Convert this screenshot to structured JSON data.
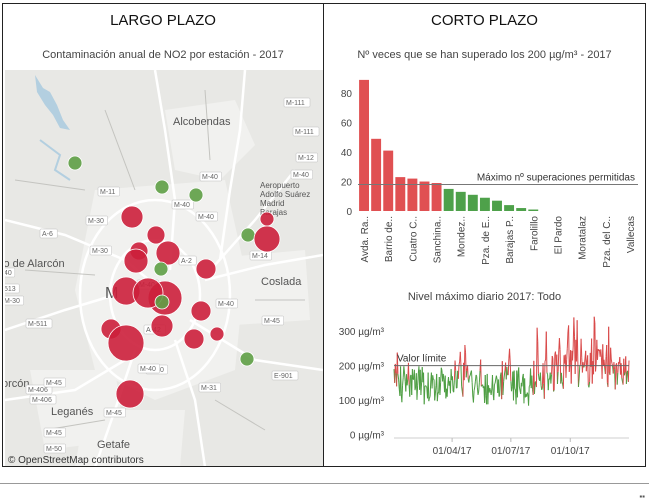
{
  "left_panel": {
    "title": "LARGO PLAZO",
    "subtitle": "Contaminación anual de NO2 por estación - 2017",
    "map": {
      "attribution": "© OpenStreetMap contributors",
      "places": [
        {
          "name": "Alcobendas"
        },
        {
          "name": "Aeropuerto Adolfo Suárez Madrid Barajas"
        },
        {
          "name": "lo de Alarcón"
        },
        {
          "name": "Coslada"
        },
        {
          "name": "Leganés"
        },
        {
          "name": "Getafe"
        },
        {
          "name": "orcón"
        },
        {
          "name": "M"
        }
      ],
      "roads": [
        "M-111",
        "M-111",
        "M-12",
        "M-40",
        "M-40",
        "M-40",
        "M-11",
        "M-40",
        "M-30",
        "A-6",
        "M-30",
        "M-14",
        "A-2",
        "M-40",
        "M-45",
        "M-40",
        "M-511",
        "M-406",
        "M-45",
        "M-406",
        "M-45",
        "M-31",
        "E-901",
        "M-45",
        "M-50",
        "M-40",
        "513",
        "M-30",
        "M-40",
        "A-42",
        "40"
      ],
      "colors": {
        "high": "#cc1f3b",
        "low": "#5e9e45"
      }
    }
  },
  "right_panel": {
    "title": "CORTO PLAZO",
    "chart_data": [
      {
        "type": "bar",
        "title": "Nº veces que se han superado los 200 µg/m³ - 2017",
        "categories": [
          "Avda. Ra..",
          "",
          "Barrio de..",
          "",
          "Cuatro C..",
          "",
          "Sanchina..",
          "",
          "Mondez..",
          "",
          "Pza. de E..",
          "",
          "Barajas P..",
          "",
          "Farolillo",
          "",
          "El Pardo",
          "",
          "Moratalaz",
          "",
          "Pza. del C..",
          "",
          "Vallecas"
        ],
        "values": [
          89,
          49,
          41,
          23,
          22,
          20,
          19,
          15,
          13,
          11,
          9,
          7,
          4,
          2,
          1,
          0,
          0,
          0,
          0,
          0,
          0,
          0,
          0
        ],
        "colors": [
          "#e05052",
          "#e05052",
          "#e05052",
          "#e05052",
          "#e05052",
          "#e05052",
          "#e05052",
          "#4ea14a",
          "#4ea14a",
          "#4ea14a",
          "#4ea14a",
          "#4ea14a",
          "#4ea14a",
          "#4ea14a",
          "#4ea14a",
          "#4ea14a",
          "#4ea14a",
          "#4ea14a",
          "#4ea14a",
          "#4ea14a",
          "#4ea14a",
          "#4ea14a",
          "#4ea14a"
        ],
        "yticks": [
          "0",
          "20",
          "40",
          "60",
          "80"
        ],
        "ylim": [
          0,
          93
        ],
        "reference_line": {
          "value": 18,
          "label": "Máximo nº superaciones permitidas"
        }
      },
      {
        "type": "line",
        "title": "Nivel máximo diario 2017: Todo",
        "x_start": "01/01/17",
        "x_end": "31/12/17",
        "yticks": [
          "0 µg/m³",
          "100 µg/m³",
          "200 µg/m³",
          "300 µg/m³"
        ],
        "xticks": [
          "01/04/17",
          "01/07/17",
          "01/10/17"
        ],
        "ylim": [
          -10,
          350
        ],
        "threshold": {
          "value": 200,
          "label": "Valor límite"
        },
        "colors": {
          "above": "#d94a4a",
          "below": "#4e9e43"
        },
        "values": [
          190,
          150,
          205,
          178,
          140,
          238,
          176,
          160,
          132,
          112,
          198,
          118,
          94,
          142,
          165,
          198,
          180,
          155,
          125,
          175,
          143,
          160,
          208,
          145,
          110,
          171,
          173,
          115,
          190,
          160,
          160,
          188,
          129,
          138,
          178,
          101,
          142,
          177,
          198,
          130,
          188,
          115,
          150,
          196,
          152,
          180,
          88,
          141,
          142,
          140,
          137,
          105,
          180,
          97,
          106,
          111,
          154,
          180,
          134,
          172,
          160,
          160,
          99,
          118,
          143,
          176,
          97,
          122,
          120,
          167,
          115,
          150,
          194,
          187,
          154,
          176,
          159,
          123,
          171,
          105,
          133,
          110,
          147,
          167,
          142,
          155,
          120,
          190,
          158,
          169,
          126,
          123,
          158,
          215,
          185,
          135,
          135,
          185,
          162,
          202,
          212,
          240,
          200,
          140,
          125,
          110,
          208,
          158,
          260,
          238,
          166,
          185,
          202,
          161,
          151,
          169,
          171,
          180,
          186,
          152,
          112,
          93,
          127,
          138,
          155,
          173,
          169,
          137,
          115,
          125,
          150,
          185,
          218,
          140,
          142,
          145,
          135,
          140,
          92,
          173,
          113,
          88,
          176,
          88,
          143,
          122,
          135,
          126,
          115,
          132,
          173,
          119,
          100,
          145,
          149,
          161,
          171,
          160,
          121,
          160,
          110,
          113,
          168,
          180,
          103,
          213,
          115,
          153,
          170,
          186,
          209,
          160,
          196,
          173,
          173,
          221,
          249,
          212,
          155,
          126,
          140,
          183,
          99,
          186,
          133,
          131,
          88,
          186,
          108,
          176,
          195,
          138,
          128,
          118,
          150,
          140,
          168,
          176,
          91,
          163,
          108,
          117,
          110,
          122,
          117,
          84,
          140,
          143,
          192,
          135,
          171,
          130,
          115,
          214,
          118,
          152,
          154,
          138,
          310,
          269,
          176,
          160,
          156,
          180,
          143,
          130,
          134,
          207,
          147,
          104,
          212,
          218,
          299,
          180,
          174,
          129,
          162,
          160,
          180,
          148,
          175,
          228,
          221,
          125,
          129,
          233,
          241,
          202,
          232,
          147,
          182,
          241,
          280,
          246,
          148,
          179,
          155,
          144,
          133,
          230,
          206,
          232,
          165,
          217,
          251,
          298,
          317,
          182,
          208,
          245,
          148,
          243,
          215,
          257,
          340,
          284,
          176,
          275,
          212,
          332,
          218,
          138,
          163,
          199,
          203,
          278,
          224,
          180,
          210,
          195,
          199,
          222,
          243,
          184,
          210,
          230,
          143,
          137,
          153,
          237,
          197,
          279,
          148,
          213,
          175,
          342,
          324,
          183,
          206,
          275,
          217,
          248,
          243,
          246,
          226,
          247,
          225,
          162,
          262,
          200,
          217,
          193,
          176,
          226,
          260,
          150,
          138,
          313,
          180,
          173,
          252,
          218,
          207,
          199,
          177,
          210,
          190,
          131,
          202,
          207,
          145,
          179,
          210,
          206,
          225,
          174,
          207,
          164,
          154,
          145,
          220,
          172,
          181,
          227,
          147,
          181,
          185,
          153,
          215
        ]
      }
    ]
  }
}
